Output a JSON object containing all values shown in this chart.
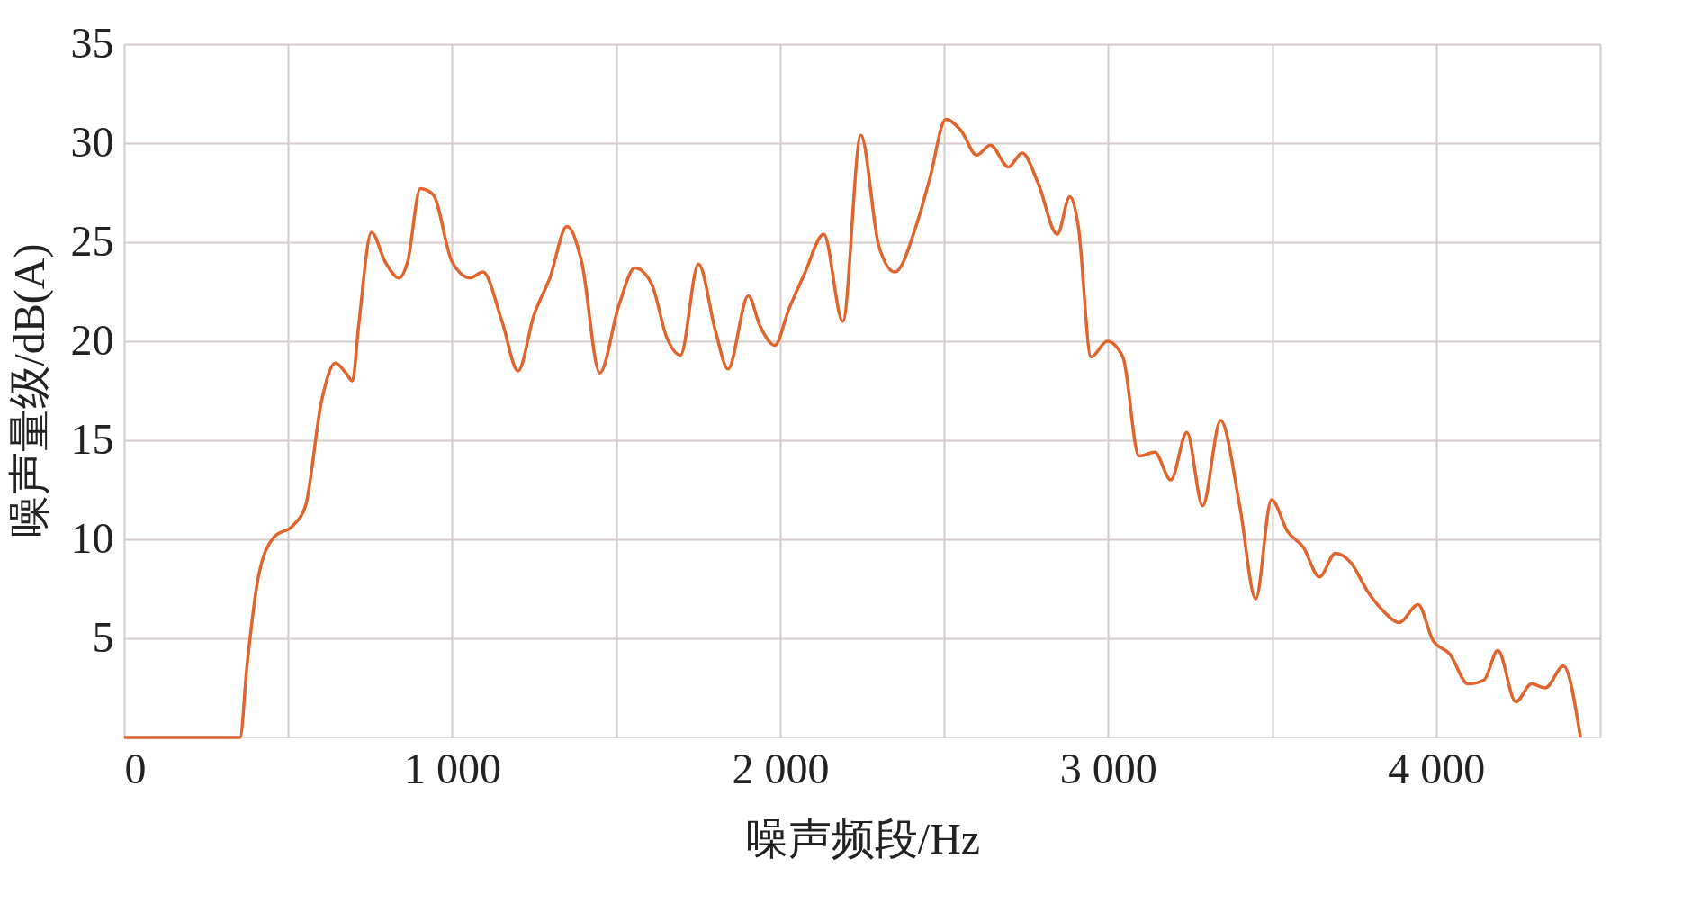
{
  "chart_data": {
    "type": "line",
    "xlabel": "噪声频段/Hz",
    "ylabel": "噪声量级/dB(A)",
    "xlim": [
      0,
      4500
    ],
    "ylim": [
      0,
      35
    ],
    "xticks": [
      0,
      {
        "value": 500,
        "label": null
      },
      {
        "value": 1000,
        "label": "1 000"
      },
      {
        "value": 1500,
        "label": null
      },
      {
        "value": 2000,
        "label": "2 000"
      },
      {
        "value": 2500,
        "label": null
      },
      {
        "value": 3000,
        "label": "3 000"
      },
      {
        "value": 3500,
        "label": null
      },
      {
        "value": 4000,
        "label": "4 000"
      },
      {
        "value": 4500,
        "label": null
      }
    ],
    "yticks": [
      5,
      10,
      15,
      20,
      25,
      30,
      35
    ],
    "grid": true,
    "marker": "none",
    "line_style": "solid",
    "series": [
      {
        "color": "#e0642c",
        "x": [
          0,
          311,
          353,
          375,
          408,
          456,
          515,
          553,
          602,
          644,
          676,
          696,
          715,
          754,
          796,
          838,
          864,
          903,
          942,
          1000,
          1055,
          1094,
          1152,
          1201,
          1249,
          1298,
          1350,
          1395,
          1450,
          1508,
          1557,
          1608,
          1654,
          1696,
          1751,
          1803,
          1841,
          1903,
          1938,
          1984,
          2026,
          2074,
          2133,
          2191,
          2246,
          2301,
          2350,
          2414,
          2456,
          2505,
          2553,
          2599,
          2641,
          2696,
          2738,
          2786,
          2845,
          2883,
          2909,
          2948,
          2997,
          3045,
          3094,
          3142,
          3191,
          3240,
          3288,
          3343,
          3401,
          3450,
          3498,
          3547,
          3595,
          3644,
          3693,
          3741,
          3790,
          3838,
          3887,
          3945,
          3990,
          4042,
          4097,
          4146,
          4188,
          4243,
          4291,
          4333,
          4388,
          4440
        ],
        "values": [
          0,
          0,
          0,
          3.7,
          8.0,
          10.1,
          10.7,
          11.7,
          17.0,
          18.9,
          18.4,
          18.0,
          20.8,
          25.5,
          24.0,
          23.2,
          24.0,
          27.7,
          27.4,
          24.0,
          23.2,
          23.5,
          21.0,
          18.5,
          21.3,
          23.2,
          25.8,
          24.0,
          18.4,
          21.8,
          23.7,
          22.9,
          20.2,
          19.3,
          23.9,
          20.5,
          18.6,
          22.3,
          20.8,
          19.8,
          21.6,
          23.4,
          25.4,
          21.0,
          30.4,
          24.8,
          23.5,
          25.8,
          28.2,
          31.2,
          30.6,
          29.4,
          29.9,
          28.8,
          29.5,
          28.0,
          25.4,
          27.3,
          25.8,
          19.2,
          20.0,
          19.2,
          14.2,
          14.4,
          13.0,
          15.4,
          11.7,
          16.0,
          11.7,
          7.0,
          12.0,
          10.4,
          9.6,
          8.1,
          9.3,
          8.8,
          7.4,
          6.4,
          5.8,
          6.7,
          4.9,
          4.2,
          2.7,
          2.9,
          4.4,
          1.8,
          2.7,
          2.5,
          3.6,
          0
        ]
      }
    ]
  }
}
